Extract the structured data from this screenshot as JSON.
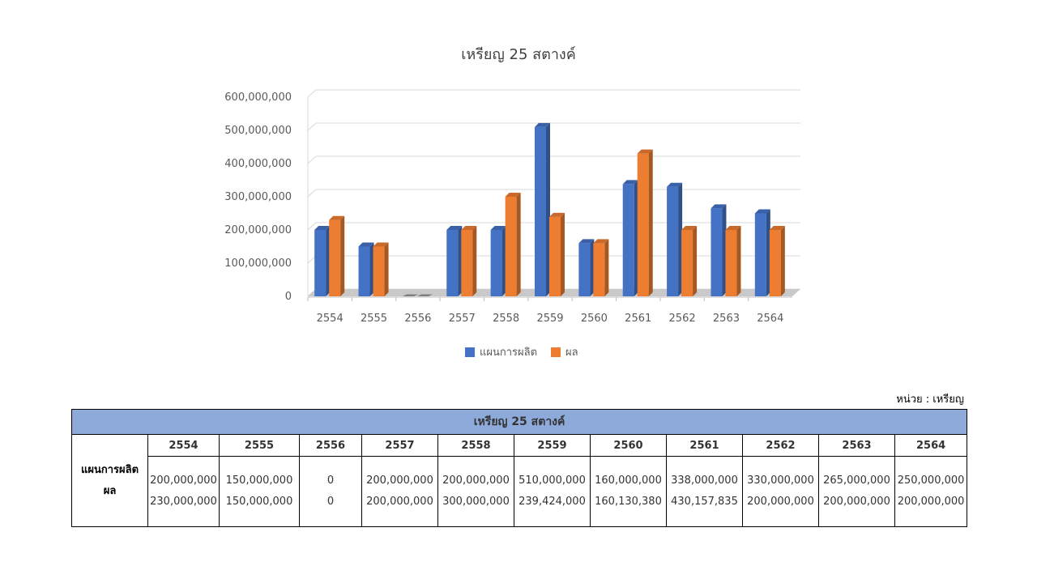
{
  "chart_data": {
    "type": "bar",
    "title": "เหรียญ 25 สตางค์",
    "categories": [
      "2554",
      "2555",
      "2556",
      "2557",
      "2558",
      "2559",
      "2560",
      "2561",
      "2562",
      "2563",
      "2564"
    ],
    "series": [
      {
        "name": "แผนการผลิต",
        "color": "#4472c4",
        "values": [
          200000000,
          150000000,
          0,
          200000000,
          200000000,
          510000000,
          160000000,
          338000000,
          330000000,
          265000000,
          250000000
        ]
      },
      {
        "name": "ผล",
        "color": "#ed7d31",
        "values": [
          230000000,
          150000000,
          0,
          200000000,
          300000000,
          239424000,
          160130380,
          430157835,
          200000000,
          200000000,
          200000000
        ]
      }
    ],
    "yticks": [
      "0",
      "100,000,000",
      "200,000,000",
      "300,000,000",
      "400,000,000",
      "500,000,000",
      "600,000,000"
    ],
    "ylim": [
      0,
      600000000
    ],
    "grid": true,
    "legend_position": "bottom"
  },
  "unit_label": "หน่วย : เหรียญ",
  "table": {
    "title": "เหรียญ 25 สตางค์",
    "row_labels": [
      "แผนการผลิต",
      "ผล"
    ],
    "years": [
      "2554",
      "2555",
      "2556",
      "2557",
      "2558",
      "2559",
      "2560",
      "2561",
      "2562",
      "2563",
      "2564"
    ],
    "plan": [
      "200,000,000",
      "150,000,000",
      "0",
      "200,000,000",
      "200,000,000",
      "510,000,000",
      "160,000,000",
      "338,000,000",
      "330,000,000",
      "265,000,000",
      "250,000,000"
    ],
    "actual": [
      "230,000,000",
      "150,000,000",
      "0",
      "200,000,000",
      "300,000,000",
      "239,424,000",
      "160,130,380",
      "430,157,835",
      "200,000,000",
      "200,000,000",
      "200,000,000"
    ]
  }
}
